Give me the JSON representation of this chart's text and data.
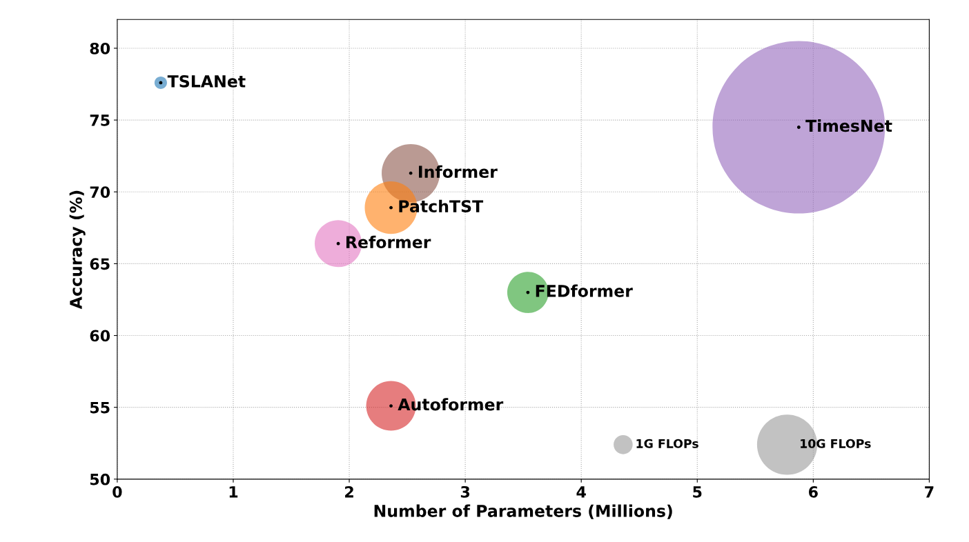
{
  "chart_data": {
    "type": "bubble",
    "xlabel": "Number of Parameters (Millions)",
    "ylabel": "Accuracy (%)",
    "xlim": [
      0,
      7
    ],
    "xticks": [
      0,
      1,
      2,
      3,
      4,
      5,
      6,
      7
    ],
    "ylim": [
      50,
      82
    ],
    "yticks": [
      50,
      55,
      60,
      65,
      70,
      75,
      80
    ],
    "grid": true,
    "legend": false,
    "series": [
      {
        "name": "TSLANet",
        "color": "#1f77b4",
        "x": [
          0.375
        ],
        "values": [
          77.6
        ],
        "sizes": [
          0.43
        ]
      },
      {
        "name": "TimesNet",
        "color": "#9467bd",
        "x": [
          5.875
        ],
        "values": [
          74.5
        ],
        "sizes": [
          82
        ]
      },
      {
        "name": "Informer",
        "color": "#8c564b",
        "x": [
          2.53
        ],
        "values": [
          71.3
        ],
        "sizes": [
          9.3
        ]
      },
      {
        "name": "PatchTST",
        "color": "#ff7f0e",
        "x": [
          2.36
        ],
        "values": [
          68.9
        ],
        "sizes": [
          7.6
        ]
      },
      {
        "name": "Reformer",
        "color": "#e377c2",
        "x": [
          1.905
        ],
        "values": [
          66.4
        ],
        "sizes": [
          6.1
        ]
      },
      {
        "name": "FEDformer",
        "color": "#2ca02c",
        "x": [
          3.54
        ],
        "values": [
          63.0
        ],
        "sizes": [
          4.7
        ]
      },
      {
        "name": "Autoformer",
        "color": "#d62728",
        "x": [
          2.36
        ],
        "values": [
          55.1
        ],
        "sizes": [
          6.8
        ]
      }
    ],
    "size_legend": [
      {
        "value": 1,
        "label": "1G FLOPs"
      },
      {
        "value": 10,
        "label": "10G FLOPs"
      }
    ]
  }
}
